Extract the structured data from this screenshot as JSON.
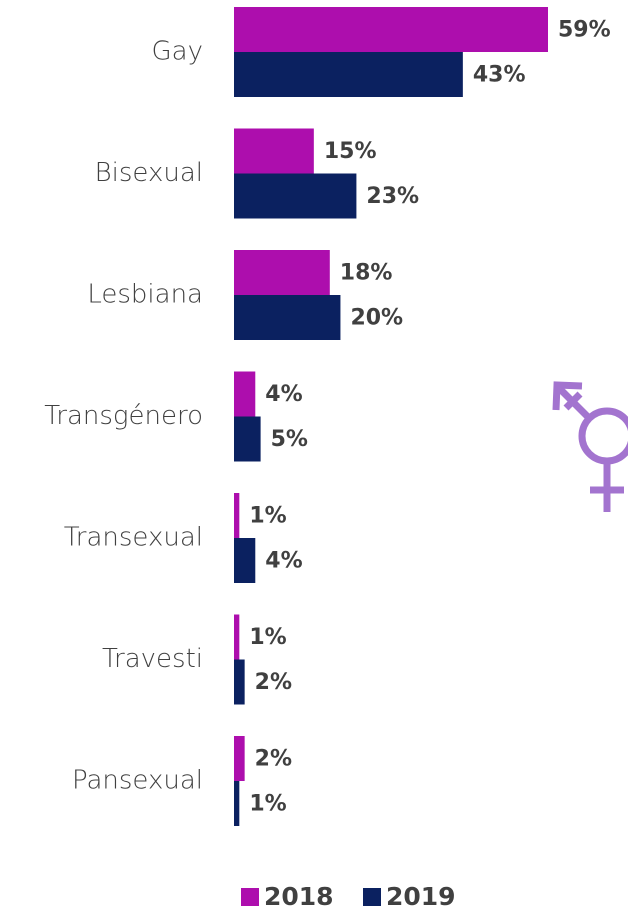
{
  "chart_data": {
    "type": "bar",
    "orientation": "horizontal",
    "categories": [
      "Gay",
      "Bisexual",
      "Lesbiana",
      "Transgénero",
      "Transexual",
      "Travesti",
      "Pansexual"
    ],
    "series": [
      {
        "name": "2018",
        "color": "#ad0ead",
        "values": [
          59,
          15,
          18,
          4,
          1,
          1,
          2
        ],
        "value_labels": [
          "59%",
          "15%",
          "18%",
          "4%",
          "1%",
          "1%",
          "2%"
        ]
      },
      {
        "name": "2019",
        "color": "#0b2160",
        "values": [
          43,
          23,
          20,
          5,
          4,
          2,
          1
        ],
        "value_labels": [
          "43%",
          "23%",
          "20%",
          "5%",
          "4%",
          "2%",
          "1%"
        ]
      }
    ],
    "legend": "bottom"
  }
}
